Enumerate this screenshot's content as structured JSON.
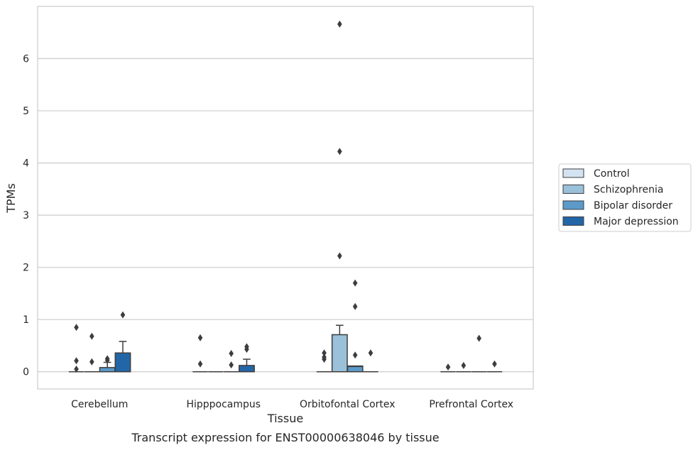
{
  "chart_data": {
    "type": "boxplot",
    "xlabel": "Tissue",
    "ylabel": "TPMs",
    "caption": "Transcript expression for ENST00000638046 by tissue",
    "ylim": [
      -0.33,
      7.0
    ],
    "yticks": [
      0,
      1,
      2,
      3,
      4,
      5,
      6
    ],
    "grid": "horizontal",
    "legend_position": "right",
    "categories": [
      "Cerebellum",
      "Hipppocampus",
      "Orbitofontal Cortex",
      "Prefrontal Cortex"
    ],
    "series": [
      {
        "name": "Control",
        "color": "#d4e3f1",
        "boxes": [
          {
            "q1": 0,
            "median": 0,
            "q3": 0,
            "whisker_low": 0,
            "whisker_high": 0,
            "outliers": [
              0.85,
              0.21,
              0.05
            ]
          },
          {
            "q1": 0,
            "median": 0,
            "q3": 0,
            "whisker_low": 0,
            "whisker_high": 0,
            "outliers": [
              0.65,
              0.15
            ]
          },
          {
            "q1": 0,
            "median": 0,
            "q3": 0,
            "whisker_low": 0,
            "whisker_high": 0,
            "outliers": [
              0.36,
              0.28,
              0.24
            ]
          },
          {
            "q1": 0,
            "median": 0,
            "q3": 0,
            "whisker_low": 0,
            "whisker_high": 0,
            "outliers": [
              0.09
            ]
          }
        ]
      },
      {
        "name": "Schizophrenia",
        "color": "#9ac0da",
        "boxes": [
          {
            "q1": 0,
            "median": 0,
            "q3": 0,
            "whisker_low": 0,
            "whisker_high": 0,
            "outliers": [
              0.68,
              0.19
            ]
          },
          {
            "q1": 0,
            "median": 0,
            "q3": 0,
            "whisker_low": 0,
            "whisker_high": 0,
            "outliers": []
          },
          {
            "q1": 0,
            "median": 0,
            "q3": 0.71,
            "whisker_low": 0,
            "whisker_high": 0.89,
            "outliers": [
              6.66,
              4.22,
              2.22
            ]
          },
          {
            "q1": 0,
            "median": 0,
            "q3": 0,
            "whisker_low": 0,
            "whisker_high": 0,
            "outliers": [
              0.12
            ]
          }
        ]
      },
      {
        "name": "Bipolar disorder",
        "color": "#5b9ac9",
        "boxes": [
          {
            "q1": 0,
            "median": 0,
            "q3": 0.08,
            "whisker_low": 0,
            "whisker_high": 0.18,
            "outliers": [
              0.25,
              0.22
            ]
          },
          {
            "q1": 0,
            "median": 0,
            "q3": 0,
            "whisker_low": 0,
            "whisker_high": 0,
            "outliers": [
              0.35,
              0.13
            ]
          },
          {
            "q1": 0,
            "median": 0.1,
            "q3": 0.11,
            "whisker_low": 0,
            "whisker_high": 0.11,
            "outliers": [
              1.7,
              1.25,
              0.32
            ]
          },
          {
            "q1": 0,
            "median": 0,
            "q3": 0,
            "whisker_low": 0,
            "whisker_high": 0,
            "outliers": [
              0.64
            ]
          }
        ]
      },
      {
        "name": "Major depression",
        "color": "#2366a8",
        "boxes": [
          {
            "q1": 0,
            "median": 0,
            "q3": 0.36,
            "whisker_low": 0,
            "whisker_high": 0.58,
            "outliers": [
              1.09
            ]
          },
          {
            "q1": 0,
            "median": 0,
            "q3": 0.12,
            "whisker_low": 0,
            "whisker_high": 0.24,
            "outliers": [
              0.48,
              0.43
            ]
          },
          {
            "q1": 0,
            "median": 0,
            "q3": 0,
            "whisker_low": 0,
            "whisker_high": 0,
            "outliers": [
              0.36
            ]
          },
          {
            "q1": 0,
            "median": 0,
            "q3": 0,
            "whisker_low": 0,
            "whisker_high": 0,
            "outliers": [
              0.15
            ]
          }
        ]
      }
    ]
  }
}
